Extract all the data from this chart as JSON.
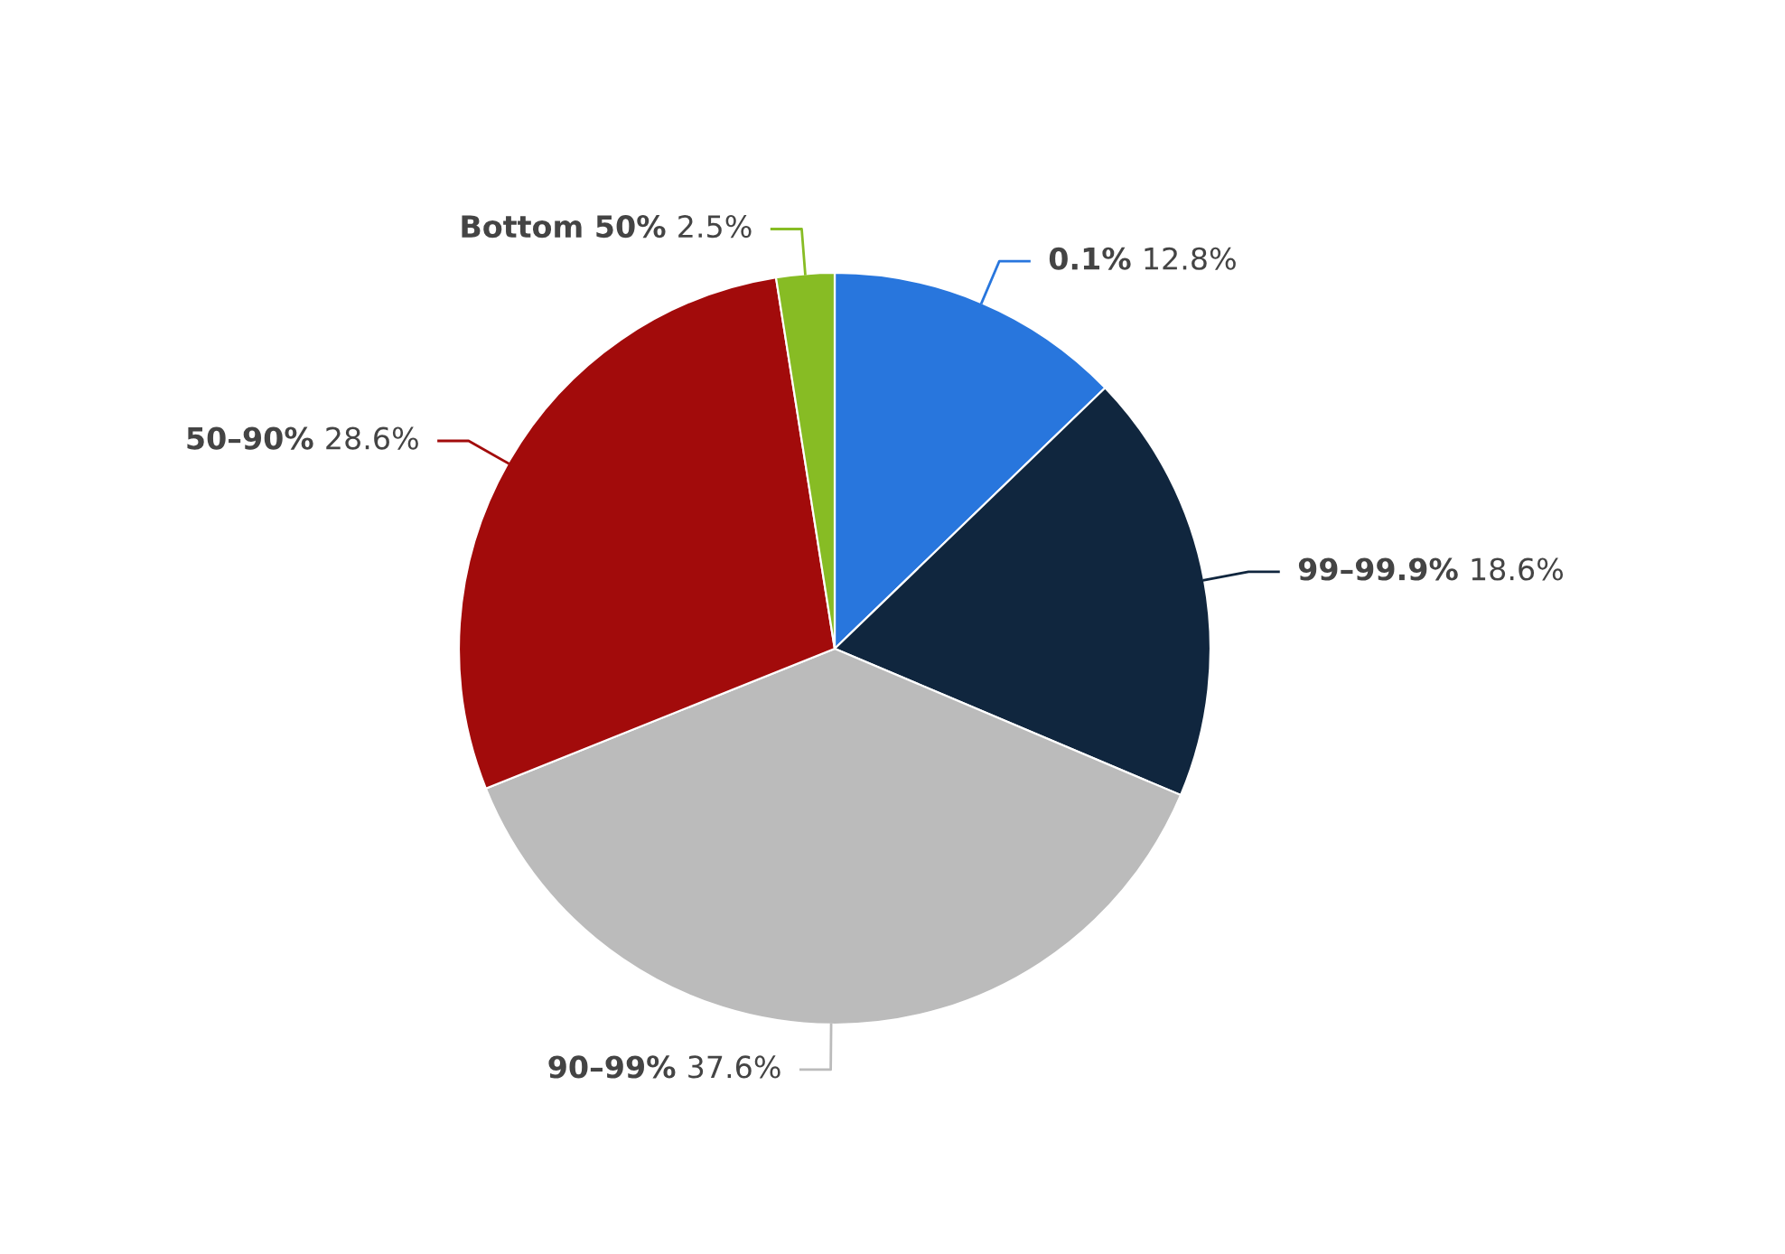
{
  "chart_data": {
    "type": "pie",
    "categories": [
      "0.1%",
      "99–99.9%",
      "90–99%",
      "50–90%",
      "Bottom 50%"
    ],
    "values": [
      12.8,
      18.6,
      37.6,
      28.6,
      2.5
    ],
    "colors": [
      "#2876dd",
      "#10263e",
      "#bbbbbb",
      "#a20b0b",
      "#87bc24"
    ],
    "value_labels": [
      "12.8%",
      "18.6%",
      "37.6%",
      "28.6%",
      "2.5%"
    ],
    "legend": false
  }
}
